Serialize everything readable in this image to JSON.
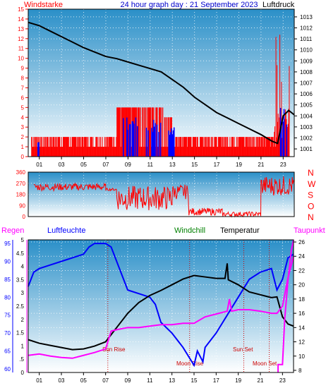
{
  "header": {
    "left_label": "Windstarke",
    "title": "24 hour graph day : 21 September 2023",
    "right_label": "Luftdruck"
  },
  "colors": {
    "wind": "#ff0000",
    "gust": "#0000ff",
    "pressure": "#000000",
    "winddir": "#ff0000",
    "regen": "#ff00ff",
    "humidity": "#0000ff",
    "windchill": "#008000",
    "temperature": "#000000",
    "dewpoint": "#ff00ff",
    "sun_moon": "#cc0000",
    "plot_top": "#2a8fc8",
    "plot_bottom": "#ffffff"
  },
  "x_ticks": [
    "01",
    "03",
    "05",
    "07",
    "09",
    "11",
    "13",
    "15",
    "17",
    "19",
    "21",
    "23"
  ],
  "panel1": {
    "left_axis": [
      "0",
      "1",
      "2",
      "3",
      "4",
      "5",
      "6",
      "7",
      "8",
      "9",
      "10",
      "11",
      "12",
      "13",
      "14",
      "15"
    ],
    "right_axis": [
      "1001",
      "1002",
      "1003",
      "1004",
      "1005",
      "1006",
      "1007",
      "1008",
      "1009",
      "1010",
      "1011",
      "1012",
      "1013"
    ]
  },
  "panel2": {
    "left_axis": [
      "0",
      "90",
      "180",
      "270",
      "360"
    ],
    "compass": [
      "N",
      "W",
      "S",
      "O",
      "N"
    ]
  },
  "panel3": {
    "legend": {
      "regen": "Regen",
      "humidity": "Luftfeuchte",
      "windchill": "Windchill",
      "temperature": "Temperatur",
      "dewpoint": "Taupunkt"
    },
    "rain_axis": [
      "0",
      ".5",
      "1",
      "1.5",
      "2",
      "2.5",
      "3",
      "3.5",
      "4",
      "4.5",
      "5"
    ],
    "humidity_axis": [
      "60",
      "65",
      "70",
      "75",
      "80",
      "85",
      "90",
      "95"
    ],
    "temp_axis": [
      "8",
      "10",
      "12",
      "14",
      "16",
      "18",
      "20",
      "22",
      "24",
      "26"
    ],
    "events": {
      "sun_rise": "Sun Rise",
      "sun_set": "Sun Set",
      "moon_rise": "Moon Rise",
      "moon_set": "Moon Set"
    }
  },
  "chart_data": [
    {
      "type": "line",
      "x_unit": "hour",
      "xlim": [
        0,
        24
      ],
      "y_left_lim": [
        0,
        15
      ],
      "y_right_lim": [
        1000.3,
        1013.7
      ],
      "series": [
        {
          "name": "Luftdruck",
          "axis": "right",
          "points": [
            [
              0,
              1012.5
            ],
            [
              1,
              1012.2
            ],
            [
              2,
              1011.7
            ],
            [
              3,
              1011.2
            ],
            [
              4,
              1010.7
            ],
            [
              5,
              1010.2
            ],
            [
              6,
              1009.8
            ],
            [
              7,
              1009.4
            ],
            [
              8,
              1009.2
            ],
            [
              9,
              1008.9
            ],
            [
              10,
              1008.6
            ],
            [
              11,
              1008.3
            ],
            [
              12,
              1008.0
            ],
            [
              13,
              1007.3
            ],
            [
              14,
              1006.6
            ],
            [
              15,
              1005.7
            ],
            [
              16,
              1005.0
            ],
            [
              17,
              1004.3
            ],
            [
              18,
              1003.8
            ],
            [
              19,
              1003.3
            ],
            [
              20,
              1002.8
            ],
            [
              21,
              1002.3
            ],
            [
              22,
              1001.7
            ],
            [
              22.5,
              1001.5
            ],
            [
              23,
              1004.0
            ],
            [
              23.5,
              1004.5
            ],
            [
              24,
              1004.1
            ]
          ]
        },
        {
          "name": "Windstarke",
          "axis": "left",
          "segments": [
            {
              "from": 0.3,
              "to": 8.0,
              "base": 1,
              "high": 2
            },
            {
              "from": 8.0,
              "to": 12.2,
              "base": 1,
              "high": 5
            },
            {
              "from": 12.2,
              "to": 13.0,
              "base": 1,
              "high": 4
            },
            {
              "from": 13.0,
              "to": 22.2,
              "base": 1,
              "high": 2
            },
            {
              "from": 22.2,
              "to": 23.6,
              "base": 1,
              "high": 15
            }
          ]
        },
        {
          "name": "Gust",
          "axis": "left",
          "segments": [
            {
              "from": 0.8,
              "to": 1.2,
              "high": 2
            },
            {
              "from": 8.5,
              "to": 12.0,
              "high": 4
            },
            {
              "from": 12.6,
              "to": 13.2,
              "high": 3
            },
            {
              "from": 22.6,
              "to": 23.4,
              "high": 5
            }
          ]
        }
      ]
    },
    {
      "type": "line",
      "x_unit": "hour",
      "xlim": [
        0,
        24
      ],
      "ylim": [
        0,
        360
      ],
      "series": [
        {
          "name": "Windrichtung",
          "segments": [
            {
              "from": 0.5,
              "to": 7.0,
              "base": 240,
              "spread": 60
            },
            {
              "from": 7.0,
              "to": 8.0,
              "base": 220,
              "spread": 20
            },
            {
              "from": 8.0,
              "to": 13.0,
              "base": 150,
              "spread": 200
            },
            {
              "from": 13.0,
              "to": 14.5,
              "base": 200,
              "spread": 120
            },
            {
              "from": 14.5,
              "to": 17.5,
              "base": 40,
              "spread": 60
            },
            {
              "from": 17.5,
              "to": 21.0,
              "base": 20,
              "spread": 40
            },
            {
              "from": 21.0,
              "to": 24.0,
              "base": 250,
              "spread": 160
            }
          ]
        }
      ]
    },
    {
      "type": "line",
      "x_unit": "hour",
      "xlim": [
        0,
        24
      ],
      "rain_lim": [
        0,
        5
      ],
      "humidity_lim": [
        59,
        96
      ],
      "temp_lim": [
        7.7,
        26.3
      ],
      "series": [
        {
          "name": "Luftfeuchte",
          "axis": "humidity",
          "points": [
            [
              0,
              83
            ],
            [
              0.5,
              87
            ],
            [
              1,
              88
            ],
            [
              2,
              89
            ],
            [
              3,
              90
            ],
            [
              4,
              91
            ],
            [
              5,
              92
            ],
            [
              5.5,
              94
            ],
            [
              6,
              95
            ],
            [
              7,
              95
            ],
            [
              7.5,
              94
            ],
            [
              8,
              90
            ],
            [
              9,
              82
            ],
            [
              10,
              81
            ],
            [
              11,
              80
            ],
            [
              11.5,
              78
            ],
            [
              12,
              73
            ],
            [
              13,
              70
            ],
            [
              14,
              66
            ],
            [
              15,
              61
            ],
            [
              15.3,
              65
            ],
            [
              15.8,
              62
            ],
            [
              16,
              66
            ],
            [
              17,
              70
            ],
            [
              18,
              75
            ],
            [
              19,
              80
            ],
            [
              20,
              85
            ],
            [
              21,
              87
            ],
            [
              22,
              88
            ],
            [
              22.5,
              82
            ],
            [
              23,
              85
            ],
            [
              23.5,
              91
            ],
            [
              24,
              92
            ]
          ]
        },
        {
          "name": "Temperatur",
          "axis": "temp",
          "points": [
            [
              0,
              12.3
            ],
            [
              1,
              11.8
            ],
            [
              2,
              11.5
            ],
            [
              3,
              11.2
            ],
            [
              4,
              10.9
            ],
            [
              5,
              11.0
            ],
            [
              6,
              11.4
            ],
            [
              7,
              12.0
            ],
            [
              8,
              14.0
            ],
            [
              9,
              16.0
            ],
            [
              10,
              17.5
            ],
            [
              11,
              18.5
            ],
            [
              12,
              19.2
            ],
            [
              13,
              20.0
            ],
            [
              14,
              20.8
            ],
            [
              15,
              21.3
            ],
            [
              16,
              21.1
            ],
            [
              17,
              20.9
            ],
            [
              17.8,
              20.9
            ],
            [
              18,
              23.0
            ],
            [
              18.1,
              20.7
            ],
            [
              19,
              20.0
            ],
            [
              20,
              19.0
            ],
            [
              21,
              18.6
            ],
            [
              22,
              18.2
            ],
            [
              22.5,
              18.3
            ],
            [
              23,
              15.5
            ],
            [
              23.5,
              14.5
            ],
            [
              24,
              14.2
            ]
          ]
        },
        {
          "name": "Taupunkt",
          "axis": "temp",
          "points": [
            [
              0,
              10.1
            ],
            [
              1,
              10.3
            ],
            [
              2,
              10.0
            ],
            [
              3,
              9.8
            ],
            [
              4,
              9.7
            ],
            [
              5,
              10.1
            ],
            [
              6,
              10.5
            ],
            [
              7,
              11.0
            ],
            [
              7.5,
              13.5
            ],
            [
              8,
              13.7
            ],
            [
              9,
              14.0
            ],
            [
              10,
              14.0
            ],
            [
              11,
              14.2
            ],
            [
              12,
              14.4
            ],
            [
              13,
              14.4
            ],
            [
              14,
              14.6
            ],
            [
              15,
              14.6
            ],
            [
              16,
              15.5
            ],
            [
              17,
              15.9
            ],
            [
              17.5,
              16.1
            ],
            [
              18,
              16.3
            ],
            [
              18.2,
              18.0
            ],
            [
              18.4,
              16.3
            ],
            [
              19,
              16.5
            ],
            [
              20,
              16.5
            ],
            [
              21,
              16.3
            ],
            [
              22,
              16.0
            ],
            [
              22.5,
              16.0
            ],
            [
              23,
              17.0
            ],
            [
              23.5,
              21.0
            ],
            [
              24,
              24.0
            ]
          ]
        },
        {
          "name": "Regen",
          "axis": "rain",
          "points": [
            [
              22.6,
              0
            ],
            [
              22.6,
              0.3
            ],
            [
              23.0,
              0.3
            ],
            [
              23.2,
              2.0
            ],
            [
              23.5,
              3.5
            ],
            [
              23.8,
              4.6
            ],
            [
              24,
              5.0
            ]
          ]
        }
      ]
    }
  ]
}
